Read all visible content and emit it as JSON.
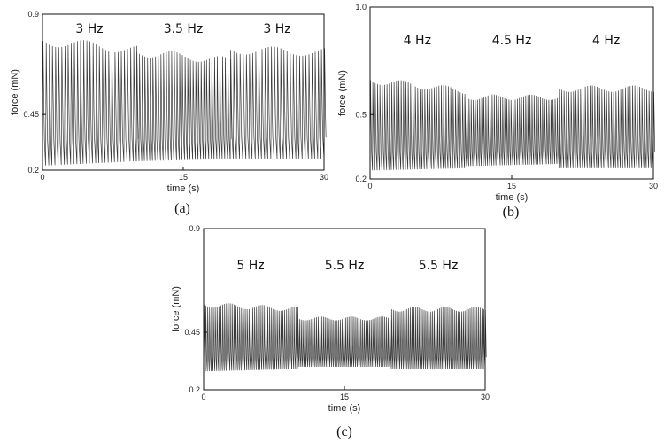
{
  "chart_data": [
    {
      "id": "a",
      "type": "line",
      "caption": "(a)",
      "xlabel": "time (s)",
      "ylabel": "force (mN)",
      "xlim": [
        0,
        30
      ],
      "ylim": [
        0.2,
        0.9
      ],
      "xticks": [
        "0",
        "15",
        "30"
      ],
      "yticks": [
        "0.2",
        "0.45",
        "0.9"
      ],
      "segments": [
        {
          "label": "3 Hz",
          "t_start": 0,
          "t_end": 10,
          "freq": 3,
          "max": 0.78,
          "max_end": 0.74,
          "min": 0.22,
          "min_end": 0.24
        },
        {
          "label": "3.5 Hz",
          "t_start": 10,
          "t_end": 20,
          "freq": 3.5,
          "max": 0.73,
          "max_end": 0.69,
          "min": 0.24,
          "min_end": 0.25
        },
        {
          "label": "3 Hz",
          "t_start": 20,
          "t_end": 30,
          "freq": 3,
          "max": 0.74,
          "max_end": 0.73,
          "min": 0.25,
          "min_end": 0.25
        }
      ]
    },
    {
      "id": "b",
      "type": "line",
      "caption": "(b)",
      "xlabel": "time (s)",
      "ylabel": "force (mN)",
      "xlim": [
        0,
        30
      ],
      "ylim": [
        0.2,
        1.0
      ],
      "xticks": [
        "0",
        "15",
        "30"
      ],
      "yticks": [
        "0.2",
        "0.5",
        "1.0"
      ],
      "segments": [
        {
          "label": "4 Hz",
          "t_start": 0,
          "t_end": 10,
          "freq": 4,
          "max": 0.66,
          "max_end": 0.61,
          "min": 0.24,
          "min_end": 0.25
        },
        {
          "label": "4.5 Hz",
          "t_start": 10,
          "t_end": 20,
          "freq": 4.5,
          "max": 0.58,
          "max_end": 0.58,
          "min": 0.26,
          "min_end": 0.27
        },
        {
          "label": "4 Hz",
          "t_start": 20,
          "t_end": 30,
          "freq": 4,
          "max": 0.62,
          "max_end": 0.62,
          "min": 0.25,
          "min_end": 0.25
        }
      ]
    },
    {
      "id": "c",
      "type": "line",
      "caption": "(c)",
      "xlabel": "time (s)",
      "ylabel": "force (mN)",
      "xlim": [
        0,
        30
      ],
      "ylim": [
        0.2,
        0.9
      ],
      "xticks": [
        "0",
        "15",
        "30"
      ],
      "yticks": [
        "0.2",
        "0.45",
        "0.9"
      ],
      "segments": [
        {
          "label": "5 Hz",
          "t_start": 0,
          "t_end": 10,
          "freq": 5,
          "max": 0.57,
          "max_end": 0.55,
          "min": 0.28,
          "min_end": 0.29
        },
        {
          "label": "5.5 Hz",
          "t_start": 10,
          "t_end": 20,
          "freq": 5.5,
          "max": 0.51,
          "max_end": 0.51,
          "min": 0.3,
          "min_end": 0.3
        },
        {
          "label": "5.5 Hz",
          "t_start": 20,
          "t_end": 30,
          "freq": 5.5,
          "max": 0.55,
          "max_end": 0.55,
          "min": 0.29,
          "min_end": 0.29
        }
      ]
    }
  ],
  "colors": {
    "trace": "#3a3a3a",
    "frame": "#111111"
  }
}
